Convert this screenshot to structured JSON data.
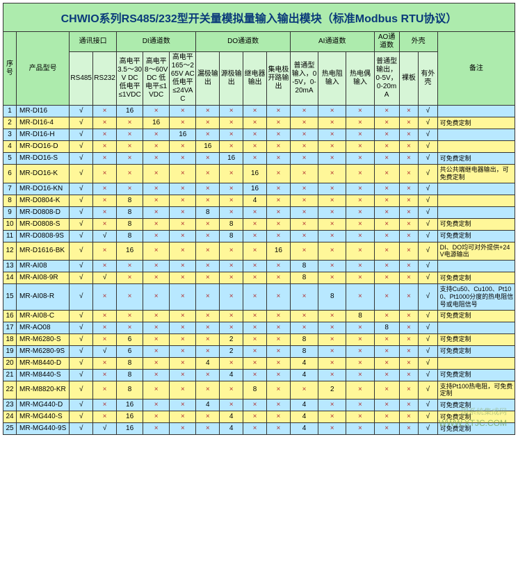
{
  "title": "CHWIO系列RS485/232型开关量模拟量输入输出模块（标准Modbus RTU协议）",
  "header": {
    "seq": "序号",
    "model": "产品型号",
    "comm": "通讯接口",
    "di": "DI通道数",
    "do": "DO通道数",
    "ai": "AI通道数",
    "ao": "AO通道数",
    "shell": "外壳",
    "note": "备注",
    "comm_sub": [
      "RS485",
      "RS232"
    ],
    "di_sub": [
      "高电平3.5～30V DC 低电平≤1VDC",
      "高电平8～60V DC 低电平≤1VDC",
      "高电平165～265V AC 低电平≤24VAC"
    ],
    "do_sub": [
      "漏极输出",
      "源极输出",
      "继电器输出",
      "集电极开路输出"
    ],
    "ai_sub": [
      "普通型输入，0-5V，0-20mA",
      "热电阻输入",
      "热电偶输入"
    ],
    "ao_sub": [
      "普通型输出，0-5V，0-20mA"
    ],
    "shell_sub": [
      "裸板",
      "有外壳"
    ]
  },
  "check": "√",
  "cross": "×",
  "rows": [
    {
      "n": "1",
      "m": "MR-DI16",
      "c": [
        "√",
        "×",
        "16",
        "×",
        "×",
        "×",
        "×",
        "×",
        "×",
        "×",
        "×",
        "×",
        "×",
        "×",
        "√"
      ],
      "note": ""
    },
    {
      "n": "2",
      "m": "MR-DI16-4",
      "c": [
        "√",
        "×",
        "×",
        "16",
        "×",
        "×",
        "×",
        "×",
        "×",
        "×",
        "×",
        "×",
        "×",
        "×",
        "√"
      ],
      "note": "可免费定制"
    },
    {
      "n": "3",
      "m": "MR-DI16-H",
      "c": [
        "√",
        "×",
        "×",
        "×",
        "16",
        "×",
        "×",
        "×",
        "×",
        "×",
        "×",
        "×",
        "×",
        "×",
        "√"
      ],
      "note": ""
    },
    {
      "n": "4",
      "m": "MR-DO16-D",
      "c": [
        "√",
        "×",
        "×",
        "×",
        "×",
        "16",
        "×",
        "×",
        "×",
        "×",
        "×",
        "×",
        "×",
        "×",
        "√"
      ],
      "note": ""
    },
    {
      "n": "5",
      "m": "MR-DO16-S",
      "c": [
        "√",
        "×",
        "×",
        "×",
        "×",
        "×",
        "16",
        "×",
        "×",
        "×",
        "×",
        "×",
        "×",
        "×",
        "√"
      ],
      "note": "可免费定制"
    },
    {
      "n": "6",
      "m": "MR-DO16-K",
      "c": [
        "√",
        "×",
        "×",
        "×",
        "×",
        "×",
        "×",
        "16",
        "×",
        "×",
        "×",
        "×",
        "×",
        "×",
        "√"
      ],
      "note": "共公共端继电器输出，可免费定制"
    },
    {
      "n": "7",
      "m": "MR-DO16-KN",
      "c": [
        "√",
        "×",
        "×",
        "×",
        "×",
        "×",
        "×",
        "16",
        "×",
        "×",
        "×",
        "×",
        "×",
        "×",
        "√"
      ],
      "note": ""
    },
    {
      "n": "8",
      "m": "MR-D0804-K",
      "c": [
        "√",
        "×",
        "8",
        "×",
        "×",
        "×",
        "×",
        "4",
        "×",
        "×",
        "×",
        "×",
        "×",
        "×",
        "√"
      ],
      "note": ""
    },
    {
      "n": "9",
      "m": "MR-D0808-D",
      "c": [
        "√",
        "×",
        "8",
        "×",
        "×",
        "8",
        "×",
        "×",
        "×",
        "×",
        "×",
        "×",
        "×",
        "×",
        "√"
      ],
      "note": ""
    },
    {
      "n": "10",
      "m": "MR-D0808-S",
      "c": [
        "√",
        "×",
        "8",
        "×",
        "×",
        "×",
        "8",
        "×",
        "×",
        "×",
        "×",
        "×",
        "×",
        "×",
        "√"
      ],
      "note": "可免费定制"
    },
    {
      "n": "11",
      "m": "MR-D0808-9S",
      "c": [
        "√",
        "√",
        "8",
        "×",
        "×",
        "×",
        "8",
        "×",
        "×",
        "×",
        "×",
        "×",
        "×",
        "×",
        "√"
      ],
      "note": "可免费定制"
    },
    {
      "n": "12",
      "m": "MR-D1616-BK",
      "c": [
        "√",
        "×",
        "16",
        "×",
        "×",
        "×",
        "×",
        "×",
        "16",
        "×",
        "×",
        "×",
        "×",
        "×",
        "√"
      ],
      "note": "DI、DO均可对外提供+24V电源输出"
    },
    {
      "n": "13",
      "m": "MR-AI08",
      "c": [
        "√",
        "×",
        "×",
        "×",
        "×",
        "×",
        "×",
        "×",
        "×",
        "8",
        "×",
        "×",
        "×",
        "×",
        "√"
      ],
      "note": ""
    },
    {
      "n": "14",
      "m": "MR-AI08-9R",
      "c": [
        "√",
        "√",
        "×",
        "×",
        "×",
        "×",
        "×",
        "×",
        "×",
        "8",
        "×",
        "×",
        "×",
        "×",
        "√"
      ],
      "note": "可免费定制"
    },
    {
      "n": "15",
      "m": "MR-AI08-R",
      "c": [
        "√",
        "×",
        "×",
        "×",
        "×",
        "×",
        "×",
        "×",
        "×",
        "×",
        "8",
        "×",
        "×",
        "×",
        "√"
      ],
      "note": "支持Cu50、Cu100、Pt100、Pt1000分度的热电阻信号或电阻信号"
    },
    {
      "n": "16",
      "m": "MR-AI08-C",
      "c": [
        "√",
        "×",
        "×",
        "×",
        "×",
        "×",
        "×",
        "×",
        "×",
        "×",
        "×",
        "8",
        "×",
        "×",
        "√"
      ],
      "note": "可免费定制"
    },
    {
      "n": "17",
      "m": "MR-AO08",
      "c": [
        "√",
        "×",
        "×",
        "×",
        "×",
        "×",
        "×",
        "×",
        "×",
        "×",
        "×",
        "×",
        "8",
        "×",
        "√"
      ],
      "note": ""
    },
    {
      "n": "18",
      "m": "MR-M6280-S",
      "c": [
        "√",
        "×",
        "6",
        "×",
        "×",
        "×",
        "2",
        "×",
        "×",
        "8",
        "×",
        "×",
        "×",
        "×",
        "√"
      ],
      "note": "可免费定制"
    },
    {
      "n": "19",
      "m": "MR-M6280-9S",
      "c": [
        "√",
        "√",
        "6",
        "×",
        "×",
        "×",
        "2",
        "×",
        "×",
        "8",
        "×",
        "×",
        "×",
        "×",
        "√"
      ],
      "note": "可免费定制"
    },
    {
      "n": "20",
      "m": "MR-M8440-D",
      "c": [
        "√",
        "×",
        "8",
        "×",
        "×",
        "4",
        "×",
        "×",
        "×",
        "4",
        "×",
        "×",
        "×",
        "×",
        "√"
      ],
      "note": ""
    },
    {
      "n": "21",
      "m": "MR-M8440-S",
      "c": [
        "√",
        "×",
        "8",
        "×",
        "×",
        "×",
        "4",
        "×",
        "×",
        "4",
        "×",
        "×",
        "×",
        "×",
        "√"
      ],
      "note": "可免费定制"
    },
    {
      "n": "22",
      "m": "MR-M8820-KR",
      "c": [
        "√",
        "×",
        "8",
        "×",
        "×",
        "×",
        "×",
        "8",
        "×",
        "×",
        "2",
        "×",
        "×",
        "×",
        "√"
      ],
      "note": "支持Pt100热电阻，可免费定制"
    },
    {
      "n": "23",
      "m": "MR-MG440-D",
      "c": [
        "√",
        "×",
        "16",
        "×",
        "×",
        "4",
        "×",
        "×",
        "×",
        "4",
        "×",
        "×",
        "×",
        "×",
        "√"
      ],
      "note": "可免费定制"
    },
    {
      "n": "24",
      "m": "MR-MG440-S",
      "c": [
        "√",
        "×",
        "16",
        "×",
        "×",
        "×",
        "4",
        "×",
        "×",
        "4",
        "×",
        "×",
        "×",
        "×",
        "√"
      ],
      "note": "可免费定制"
    },
    {
      "n": "25",
      "m": "MR-MG440-9S",
      "c": [
        "√",
        "√",
        "16",
        "×",
        "×",
        "×",
        "4",
        "×",
        "×",
        "4",
        "×",
        "×",
        "×",
        "×",
        "√"
      ],
      "note": "可免费定制"
    }
  ],
  "watermark1": "国系统集成网",
  "watermark2": "WWW.XTJC.COM",
  "colors": {
    "title_color": "#0a3a7a",
    "header_green": "#adebad",
    "header_light": "#d6f5d6",
    "row_blue": "#b8e8ff",
    "row_yellow": "#fff799",
    "cross_color": "#b03030",
    "border": "#333333"
  }
}
